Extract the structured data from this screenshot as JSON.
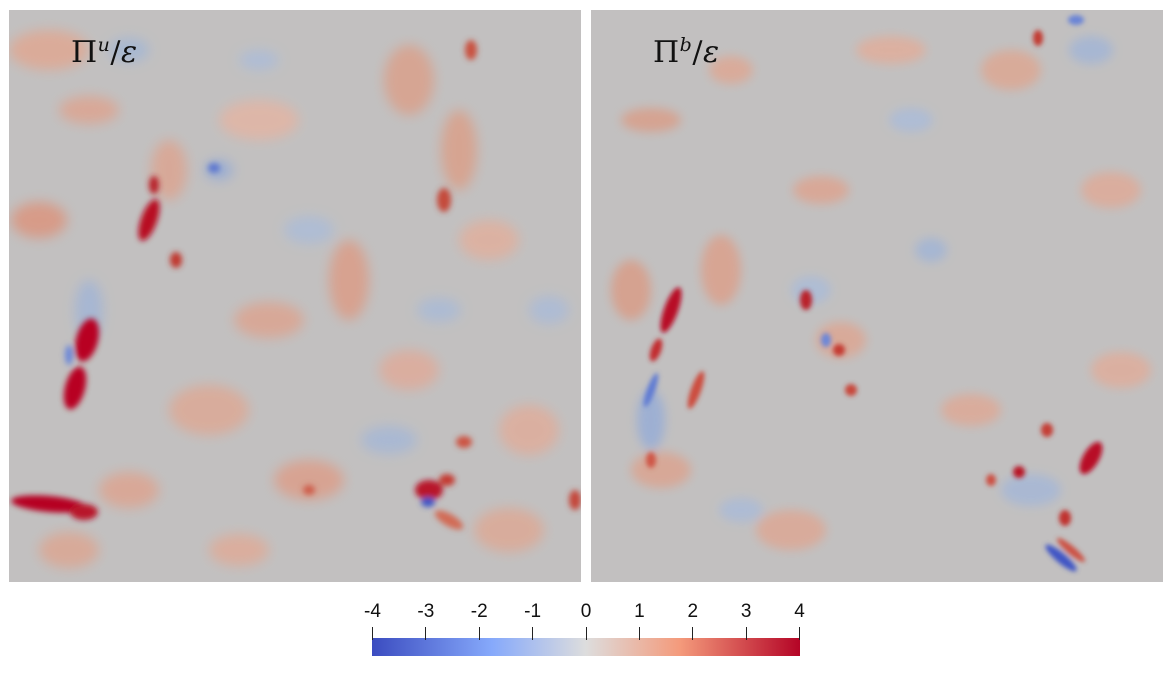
{
  "panels": [
    {
      "label_base": "Π",
      "label_sup": "u",
      "label_den": "ε"
    },
    {
      "label_base": "Π",
      "label_sup": "b",
      "label_den": "ε"
    }
  ],
  "colorbar": {
    "ticks": [
      "-4",
      "-3",
      "-2",
      "-1",
      "0",
      "1",
      "2",
      "3",
      "4"
    ],
    "range": [
      -4,
      4
    ],
    "colormap": [
      "#3b4cc0",
      "#dddddd",
      "#b40426"
    ]
  }
}
